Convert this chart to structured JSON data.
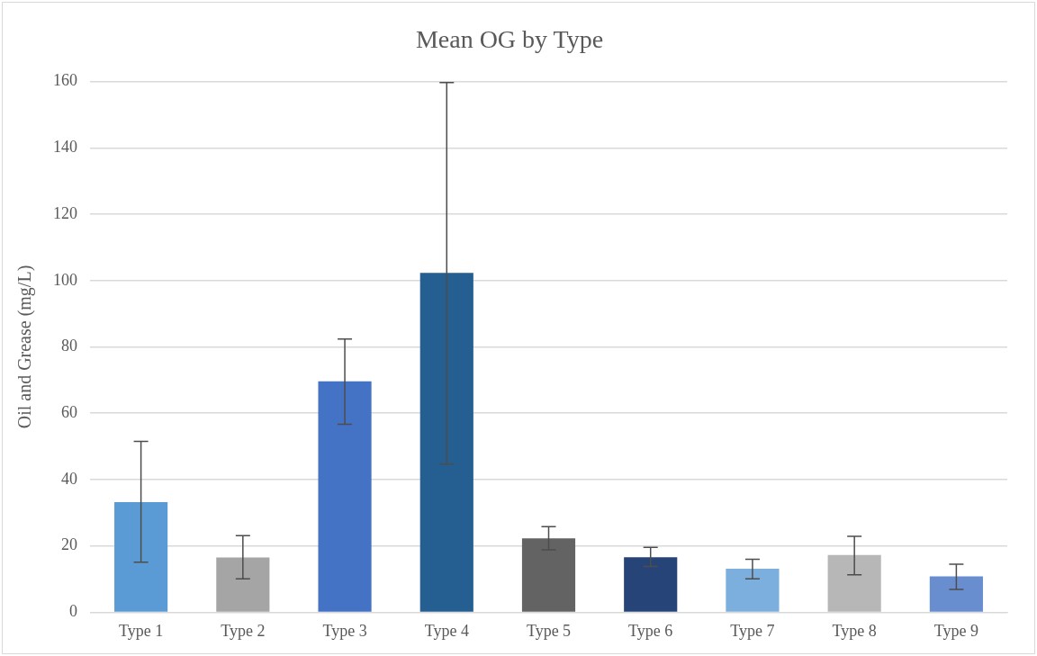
{
  "chart_data": {
    "type": "bar",
    "title": "Mean OG by Type",
    "ylabel": "Oil and Grease (mg/L)",
    "categories": [
      "Type 1",
      "Type 2",
      "Type 3",
      "Type 4",
      "Type 5",
      "Type 6",
      "Type 7",
      "Type 8",
      "Type 9"
    ],
    "values": [
      33.2,
      16.5,
      69.6,
      102.3,
      22.3,
      16.6,
      13.1,
      17.3,
      10.8
    ],
    "colors": [
      "#5b9bd5",
      "#a5a5a5",
      "#4472c4",
      "#255e91",
      "#636363",
      "#264478",
      "#7cafdd",
      "#b7b7b7",
      "#698ed0"
    ],
    "errors": [
      [
        15.1,
        51.5
      ],
      [
        10.1,
        23.1
      ],
      [
        56.7,
        82.4
      ],
      [
        44.7,
        159.7
      ],
      [
        18.8,
        25.8
      ],
      [
        13.8,
        19.6
      ],
      [
        10.1,
        16.0
      ],
      [
        11.3,
        22.9
      ],
      [
        6.9,
        14.5
      ]
    ],
    "ylim": [
      0,
      160
    ],
    "yticks": [
      0,
      20,
      40,
      60,
      80,
      100,
      120,
      140,
      160
    ],
    "grid": "y",
    "legend": false
  }
}
